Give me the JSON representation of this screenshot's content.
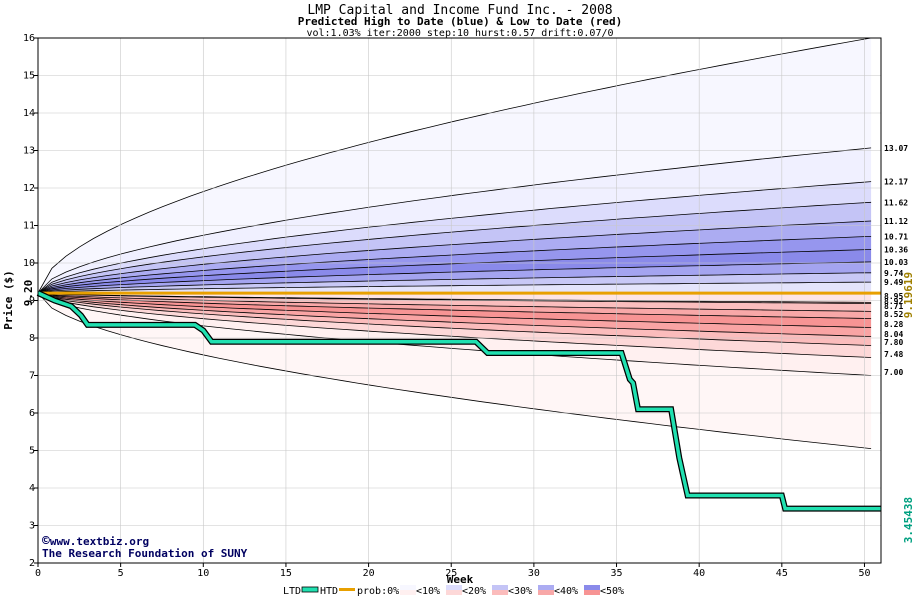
{
  "chart_data": {
    "type": "area",
    "title": "LMP Capital and Income Fund Inc. - 2008",
    "subtitle": "Predicted High to Date (blue) &  Low to Date (red)",
    "params": "vol:1.03% iter:2000 step:10 hurst:0.57 drift:0.07/0",
    "xlabel": "Week",
    "ylabel": "Price ($)",
    "xlim": [
      0,
      51
    ],
    "ylim": [
      2,
      16
    ],
    "x_ticks": [
      "0",
      "5",
      "10",
      "15",
      "20",
      "25",
      "30",
      "35",
      "40",
      "45",
      "50"
    ],
    "y_ticks": [
      "2",
      "3",
      "4",
      "5",
      "6",
      "7",
      "8",
      "9",
      "10",
      "11",
      "12",
      "13",
      "14",
      "15",
      "16"
    ],
    "grid": true,
    "start_price": 9.2,
    "start_label": "9.20",
    "current_price": 9.19619,
    "current_label": "9.19619",
    "last_price": 3.45438,
    "last_label": "3.45438",
    "high_band_ends": [
      {
        "label": "13.07",
        "value": 13.07,
        "shade": "#f0f0ff"
      },
      {
        "label": "12.17",
        "value": 12.17,
        "shade": "#dcdcfc"
      },
      {
        "label": "11.62",
        "value": 11.62,
        "shade": "#c4c4f6"
      },
      {
        "label": "11.12",
        "value": 11.12,
        "shade": "#acacf2"
      },
      {
        "label": "10.71",
        "value": 10.71,
        "shade": "#9696ee"
      },
      {
        "label": "10.36",
        "value": 10.36,
        "shade": "#8a8aea"
      },
      {
        "label": "10.03",
        "value": 10.03,
        "shade": "#a4a4f0"
      },
      {
        "label": "9.74",
        "value": 9.74,
        "shade": "#c8c8f6"
      },
      {
        "label": "9.49",
        "value": 9.49,
        "shade": "#e4e4fb"
      }
    ],
    "low_band_ends": [
      {
        "label": "8.95",
        "value": 8.95,
        "shade": "#fde4e4"
      },
      {
        "label": "8.92",
        "value": 8.92,
        "shade": "#fcd2d2"
      },
      {
        "label": "8.71",
        "value": 8.71,
        "shade": "#fabebe"
      },
      {
        "label": "8.52",
        "value": 8.52,
        "shade": "#f8a8a8"
      },
      {
        "label": "8.28",
        "value": 8.28,
        "shade": "#f79494"
      },
      {
        "label": "8.04",
        "value": 8.04,
        "shade": "#f9a4a4"
      },
      {
        "label": "7.80",
        "value": 7.8,
        "shade": "#fbbcbc"
      },
      {
        "label": "7.48",
        "value": 7.48,
        "shade": "#fdd8d8"
      },
      {
        "label": "7.00",
        "value": 7.0,
        "shade": "#fff0f0"
      }
    ],
    "outer_high_end": 16.0,
    "outer_low_end": 5.05,
    "ltd_series": {
      "name": "LTD",
      "points": [
        [
          0,
          9.2
        ],
        [
          1,
          9.0
        ],
        [
          2,
          8.85
        ],
        [
          2.6,
          8.6
        ],
        [
          3,
          8.35
        ],
        [
          9.5,
          8.35
        ],
        [
          10,
          8.2
        ],
        [
          10.5,
          7.9
        ],
        [
          26.5,
          7.9
        ],
        [
          27.2,
          7.6
        ],
        [
          35.3,
          7.6
        ],
        [
          35.8,
          6.9
        ],
        [
          36,
          6.8
        ],
        [
          36.3,
          6.1
        ],
        [
          38.3,
          6.1
        ],
        [
          38.8,
          4.8
        ],
        [
          39.3,
          3.8
        ],
        [
          45,
          3.8
        ],
        [
          45.2,
          3.45
        ],
        [
          51,
          3.45
        ]
      ]
    },
    "legend": {
      "items": [
        "LTD",
        "HTD",
        "prob:0%",
        "<10%",
        "<20%",
        "<30%",
        "<40%",
        "<50%"
      ],
      "ltd_color": "#000000",
      "htd_color": "#20e0b0",
      "price_color": "#e8a000"
    },
    "credit_lines": [
      "www.textbiz.org",
      "The Research Foundation of SUNY"
    ],
    "colors": {
      "step_line": "#20e0b0",
      "current_line": "#e8a000",
      "last_label": "#00a080",
      "current_label": "#a08000"
    }
  }
}
